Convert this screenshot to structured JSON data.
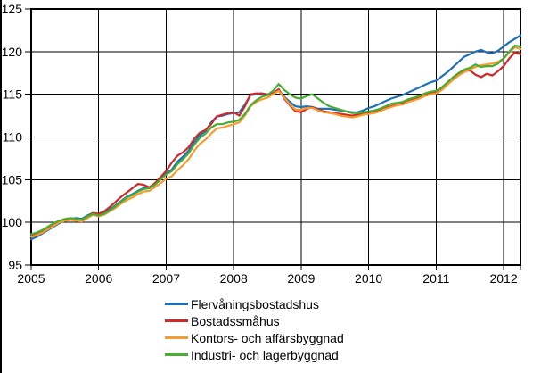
{
  "chart_data": {
    "type": "line",
    "title": "",
    "frequency": "monthly",
    "x_axis": {
      "tick_labels": [
        "2005",
        "2006",
        "2007",
        "2008",
        "2009",
        "2010",
        "2011",
        "2012"
      ],
      "months_per_tick": 12
    },
    "y_axis": {
      "min": 95,
      "max": 125,
      "tick_step": 5,
      "tick_labels": [
        "95",
        "100",
        "105",
        "110",
        "115",
        "120",
        "125"
      ]
    },
    "grid": true,
    "legend_position": "bottom-center",
    "axis_color": "#000000",
    "series": [
      {
        "name": "Flervåningsbostadshus",
        "color": "#1C70B8",
        "values": [
          98.0,
          98.3,
          98.7,
          99.1,
          99.5,
          99.9,
          100.2,
          100.4,
          100.5,
          100.4,
          100.8,
          101.1,
          100.9,
          101.1,
          101.5,
          102.0,
          102.5,
          103.0,
          103.3,
          103.7,
          104.0,
          104.1,
          104.5,
          105.1,
          105.7,
          106.2,
          107.1,
          107.7,
          108.4,
          109.4,
          110.2,
          110.7,
          111.7,
          112.4,
          112.5,
          112.7,
          112.8,
          112.9,
          113.8,
          114.9,
          115.0,
          115.1,
          115.0,
          115.1,
          115.5,
          114.7,
          114.1,
          113.6,
          113.5,
          113.6,
          113.5,
          113.3,
          113.3,
          113.3,
          113.2,
          113.1,
          113.0,
          112.9,
          112.9,
          113.1,
          113.4,
          113.6,
          113.9,
          114.2,
          114.5,
          114.7,
          114.9,
          115.2,
          115.5,
          115.8,
          116.1,
          116.4,
          116.6,
          117.1,
          117.6,
          118.2,
          118.8,
          119.4,
          119.7,
          120.0,
          120.2,
          119.9,
          119.8,
          120.1,
          120.6,
          121.1,
          121.5,
          121.9
        ]
      },
      {
        "name": "Bostadssmåhus",
        "color": "#D02826",
        "values": [
          98.4,
          98.6,
          98.9,
          99.3,
          99.7,
          100.0,
          100.2,
          100.3,
          100.3,
          100.2,
          100.7,
          101.1,
          101.0,
          101.3,
          101.8,
          102.4,
          103.0,
          103.5,
          104.0,
          104.5,
          104.4,
          104.1,
          104.6,
          105.3,
          106.0,
          107.0,
          107.8,
          108.2,
          108.8,
          109.8,
          110.5,
          110.8,
          111.5,
          112.4,
          112.6,
          112.8,
          112.9,
          112.5,
          113.6,
          115.0,
          115.1,
          115.1,
          114.9,
          115.1,
          115.6,
          114.5,
          113.7,
          113.0,
          112.9,
          113.3,
          113.5,
          113.2,
          113.0,
          112.9,
          112.8,
          112.7,
          112.6,
          112.5,
          112.6,
          112.7,
          112.8,
          112.9,
          113.1,
          113.4,
          113.6,
          113.8,
          113.9,
          114.2,
          114.4,
          114.6,
          114.9,
          115.1,
          115.2,
          115.6,
          116.2,
          116.8,
          117.3,
          117.7,
          117.8,
          117.3,
          117.0,
          117.4,
          117.2,
          117.7,
          118.3,
          119.2,
          119.9,
          119.7
        ]
      },
      {
        "name": "Kontors- och affärsbyggnad",
        "color": "#F79B30",
        "values": [
          98.3,
          98.5,
          98.8,
          99.2,
          99.6,
          100.0,
          100.2,
          100.3,
          100.2,
          100.1,
          100.5,
          100.9,
          100.7,
          100.9,
          101.3,
          101.7,
          102.2,
          102.6,
          102.9,
          103.3,
          103.6,
          103.7,
          104.1,
          104.6,
          105.1,
          105.4,
          106.1,
          106.7,
          107.4,
          108.4,
          109.2,
          109.7,
          110.4,
          111.0,
          111.1,
          111.3,
          111.5,
          111.7,
          112.5,
          113.6,
          114.1,
          114.4,
          114.6,
          115.0,
          115.4,
          114.6,
          113.8,
          113.2,
          113.2,
          113.4,
          113.4,
          113.1,
          112.9,
          112.8,
          112.7,
          112.5,
          112.4,
          112.3,
          112.4,
          112.6,
          112.7,
          112.8,
          113.0,
          113.3,
          113.5,
          113.7,
          113.8,
          114.1,
          114.3,
          114.5,
          114.8,
          115.0,
          115.1,
          115.5,
          116.1,
          116.7,
          117.2,
          117.6,
          117.9,
          118.2,
          118.4,
          118.5,
          118.6,
          118.8,
          119.2,
          119.9,
          120.5,
          120.3
        ]
      },
      {
        "name": "Industri- och lagerbyggnad",
        "color": "#47AD34",
        "values": [
          98.6,
          98.8,
          99.1,
          99.5,
          99.9,
          100.2,
          100.4,
          100.5,
          100.4,
          100.3,
          100.7,
          101.0,
          100.8,
          101.0,
          101.4,
          101.9,
          102.4,
          102.9,
          103.2,
          103.6,
          103.9,
          104.0,
          104.4,
          105.0,
          105.6,
          106.0,
          106.8,
          107.4,
          108.1,
          109.1,
          109.9,
          110.4,
          111.1,
          111.5,
          111.5,
          111.7,
          111.8,
          112.0,
          112.7,
          113.7,
          114.3,
          114.7,
          114.9,
          115.4,
          116.2,
          115.5,
          115.0,
          114.6,
          114.5,
          114.8,
          115.0,
          114.5,
          114.0,
          113.6,
          113.4,
          113.2,
          113.0,
          112.8,
          112.8,
          112.9,
          113.0,
          113.1,
          113.3,
          113.6,
          113.9,
          114.0,
          114.1,
          114.4,
          114.6,
          114.8,
          115.1,
          115.3,
          115.4,
          115.8,
          116.4,
          117.0,
          117.5,
          117.9,
          118.1,
          118.5,
          118.2,
          118.3,
          118.3,
          118.6,
          119.2,
          120.0,
          120.7,
          120.6
        ]
      }
    ]
  }
}
